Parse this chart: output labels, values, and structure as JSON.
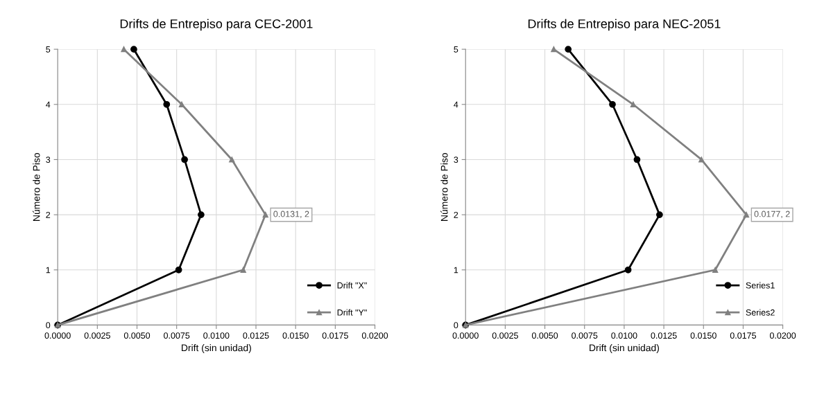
{
  "chart_data": [
    {
      "type": "line",
      "title": "Drifts de Entrepiso para CEC-2001",
      "xlabel": "Drift (sin unidad)",
      "ylabel": "Número de Piso",
      "series": [
        {
          "name": "Drift \"X\"",
          "color": "#000000",
          "marker": "circle",
          "x": [
            0,
            0.00763,
            0.00904,
            0.008,
            0.00687,
            0.0048
          ],
          "values": [
            0,
            1,
            2,
            3,
            4,
            5
          ]
        },
        {
          "name": "Drift \"Y\"",
          "color": "#808080",
          "marker": "triangle",
          "x": [
            0,
            0.0117,
            0.0131,
            0.01098,
            0.00782,
            0.00417
          ],
          "values": [
            0,
            1,
            2,
            3,
            4,
            5
          ]
        }
      ],
      "annotations": [
        {
          "text": "0.0131, 2",
          "x": 0.0131,
          "y": 2
        }
      ],
      "xlim": [
        0,
        0.02
      ],
      "ylim": [
        0,
        5
      ],
      "xticks": [
        {
          "value": 0,
          "label": "0.0000"
        },
        {
          "value": 0.0025,
          "label": "0.0025"
        },
        {
          "value": 0.005,
          "label": "0.0050"
        },
        {
          "value": 0.0075,
          "label": "0.0075"
        },
        {
          "value": 0.01,
          "label": "0.0100"
        },
        {
          "value": 0.0125,
          "label": "0.0125"
        },
        {
          "value": 0.015,
          "label": "0.0150"
        },
        {
          "value": 0.0175,
          "label": "0.0175"
        },
        {
          "value": 0.02,
          "label": "0.0200"
        }
      ],
      "yticks": [
        0,
        1,
        2,
        3,
        4,
        5
      ],
      "grid": true,
      "legend": "lower right"
    },
    {
      "type": "line",
      "title": "Drifts de Entrepiso para NEC-2051",
      "xlabel": "Drift (sin unidad)",
      "ylabel": "Número de Piso",
      "series": [
        {
          "name": "Series1",
          "color": "#000000",
          "marker": "circle",
          "x": [
            0,
            0.01025,
            0.01223,
            0.01081,
            0.00926,
            0.00647
          ],
          "values": [
            0,
            1,
            2,
            3,
            4,
            5
          ]
        },
        {
          "name": "Series2",
          "color": "#808080",
          "marker": "triangle",
          "x": [
            0,
            0.01574,
            0.0177,
            0.01487,
            0.01057,
            0.00556
          ],
          "values": [
            0,
            1,
            2,
            3,
            4,
            5
          ]
        }
      ],
      "annotations": [
        {
          "text": "0.0177, 2",
          "x": 0.0177,
          "y": 2
        }
      ],
      "xlim": [
        0,
        0.02
      ],
      "ylim": [
        0,
        5
      ],
      "xticks": [
        {
          "value": 0,
          "label": "0.0000"
        },
        {
          "value": 0.0025,
          "label": "0.0025"
        },
        {
          "value": 0.005,
          "label": "0.0050"
        },
        {
          "value": 0.0075,
          "label": "0.0075"
        },
        {
          "value": 0.01,
          "label": "0.0100"
        },
        {
          "value": 0.0125,
          "label": "0.0125"
        },
        {
          "value": 0.015,
          "label": "0.0150"
        },
        {
          "value": 0.0175,
          "label": "0.0175"
        },
        {
          "value": 0.02,
          "label": "0.0200"
        }
      ],
      "yticks": [
        0,
        1,
        2,
        3,
        4,
        5
      ],
      "grid": true,
      "legend": "lower right"
    }
  ]
}
